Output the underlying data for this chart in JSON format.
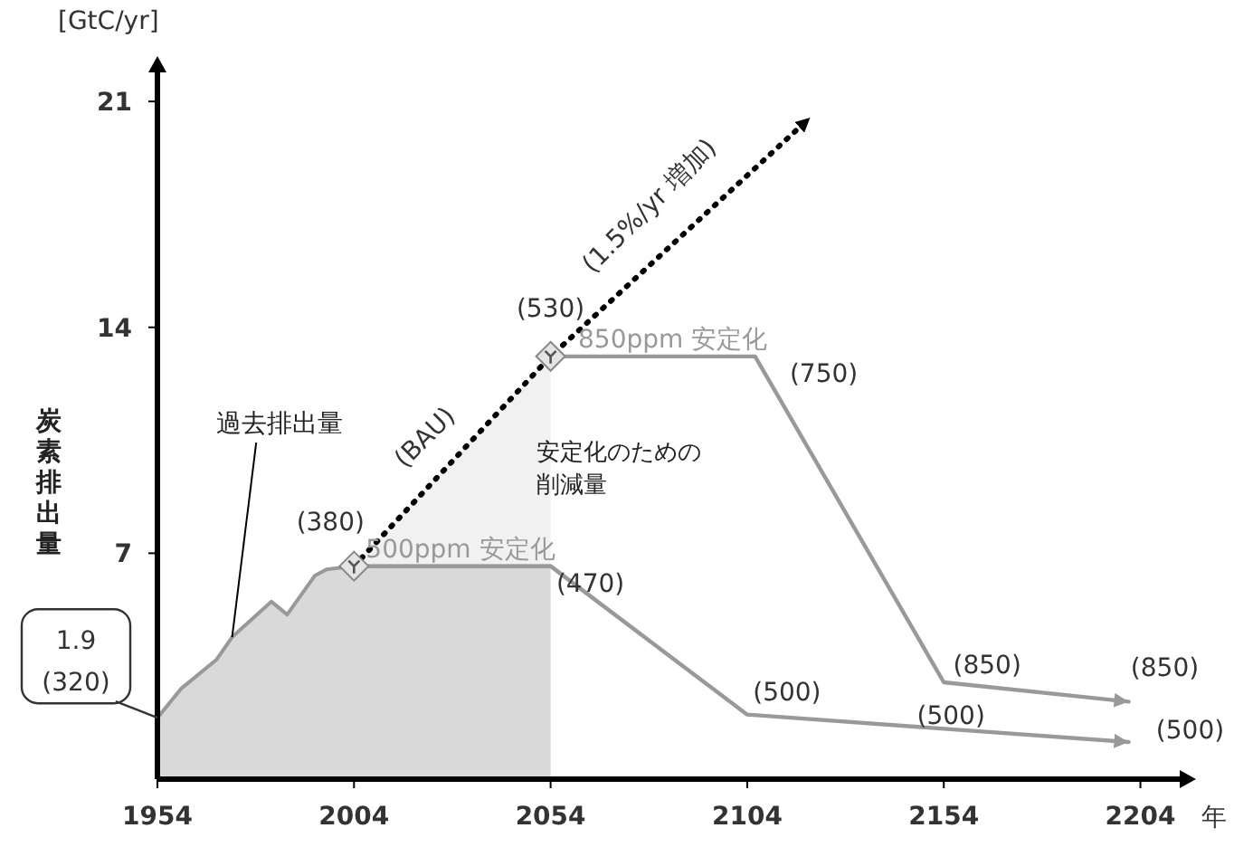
{
  "chart_data": {
    "type": "line",
    "xlabel": "年",
    "ylabel": "炭素排出量",
    "xlim": [
      1954,
      2214
    ],
    "ylim": [
      0,
      21.9
    ],
    "xticks": [
      1954,
      2004,
      2054,
      2104,
      2154,
      2204
    ],
    "yticks": [
      7,
      14,
      21
    ],
    "series": [
      {
        "name": "過去排出量",
        "type": "area",
        "color": "#d9d9d9",
        "x": [
          1954,
          1960,
          1969,
          1973,
          1983,
          1987,
          1994,
          1997,
          2004,
          2054
        ],
        "values": [
          1.9,
          2.8,
          3.7,
          4.4,
          5.5,
          5.1,
          6.3,
          6.5,
          6.6,
          6.6
        ]
      },
      {
        "name": "(BAU)",
        "line_style": "dotted",
        "color": "#000000",
        "x": [
          2004,
          2054,
          2120
        ],
        "values": [
          6.6,
          13.1,
          20.5
        ],
        "lower": [
          6.6,
          6.6,
          null
        ],
        "upper": [
          6.6,
          13.1,
          null
        ]
      },
      {
        "name": "500ppm 安定化",
        "color": "#999999",
        "x": [
          2004,
          2054,
          2104,
          2201
        ],
        "values": [
          6.6,
          6.6,
          2.0,
          1.15
        ]
      },
      {
        "name": "850ppm 安定化",
        "color": "#999999",
        "x": [
          2054,
          2106,
          2154,
          2201
        ],
        "values": [
          13.1,
          13.1,
          3.0,
          2.4
        ]
      }
    ],
    "annotations": [
      "[GtC/yr]",
      "1.9",
      "(320)",
      {
        "text": "(380)",
        "x": 2004,
        "y": 6.6
      },
      {
        "text": "(530)",
        "x": 2054,
        "y": 13.1
      },
      {
        "text": "(470)",
        "x": 2054,
        "y": 6.6
      },
      {
        "text": "(750)",
        "x": 2106,
        "y": 13.1
      },
      {
        "text": "(500)",
        "x": 2104,
        "y": 2.0
      },
      {
        "text": "(850)",
        "x": 2154,
        "y": 3.0
      },
      {
        "text": "(500)",
        "x": 2154,
        "y": 1.6
      },
      {
        "text": "(850)",
        "x": 2201,
        "y": 2.4
      },
      {
        "text": "(500)",
        "x": 2201,
        "y": 1.15
      },
      "(1.5%/yr 増加)",
      {
        "text": "安定化のための削減量",
        "x": 2054,
        "y": 10
      }
    ]
  }
}
